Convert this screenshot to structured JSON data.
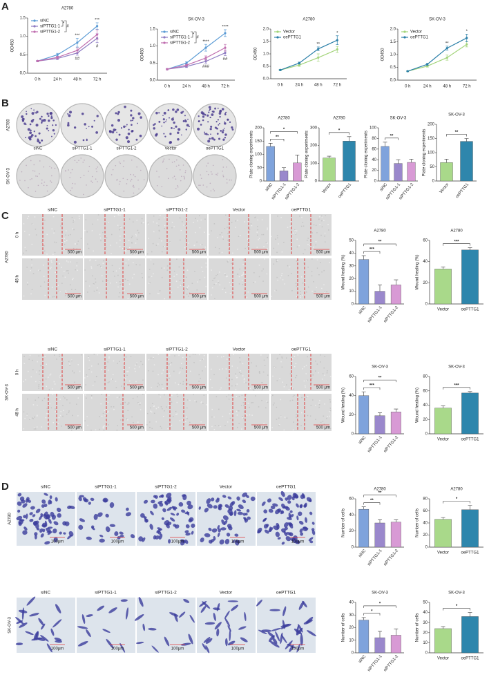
{
  "panel_letters": [
    "A",
    "B",
    "C",
    "D"
  ],
  "colony": {
    "columns": [
      "siNC",
      "siPTTG1-1",
      "siPTTG1-2",
      "Vector",
      "oePTTG1"
    ],
    "rows": [
      "A2780",
      "SK-OV-3"
    ]
  },
  "wound": [
    {
      "cell_line": "A2780",
      "columns": [
        "siNC",
        "siPTTG1-1",
        "siPTTG1-2",
        "Vector",
        "oePTTG1"
      ],
      "times": [
        "0 h",
        "48 h"
      ],
      "scale": "500 μm"
    },
    {
      "cell_line": "SK-OV-3",
      "columns": [
        "siNC",
        "siPTTG1-1",
        "siPTTG1-2",
        "Vector",
        "oePTTG1"
      ],
      "times": [
        "0 h",
        "48 h"
      ],
      "scale": "500 μm"
    }
  ],
  "transwell": [
    {
      "cell_line": "A2780",
      "columns": [
        "siNC",
        "siPTTG1-1",
        "siPTTG1-2",
        "Vector",
        "oePTTG1"
      ],
      "scale": "100μm"
    },
    {
      "cell_line": "SK-OV-3",
      "columns": [
        "siNC",
        "siPTTG1-1",
        "siPTTG1-2",
        "Vector",
        "oePTTG1"
      ],
      "scale": "100μm"
    }
  ],
  "chart_data": [
    {
      "type": "line",
      "title": "A2780",
      "categories": [
        "0 h",
        "24 h",
        "48 h",
        "72 h"
      ],
      "ylabel": "OD450",
      "ylim": [
        0,
        1.5
      ],
      "yticks": [
        {
          "value": 0,
          "label": "0.0"
        },
        0.5,
        {
          "value": 1,
          "label": "1.0"
        },
        1.5
      ],
      "series": [
        {
          "name": "siNC",
          "color": "#5b9bd5",
          "values": [
            0.33,
            0.5,
            0.83,
            1.28
          ],
          "errors": [
            0.02,
            0.04,
            0.12,
            0.09
          ]
        },
        {
          "name": "siPTTG1-1",
          "color": "#8e7cc3",
          "values": [
            0.33,
            0.4,
            0.55,
            0.95
          ],
          "errors": [
            0.02,
            0.03,
            0.06,
            0.12
          ]
        },
        {
          "name": "siPTTG1-2",
          "color": "#c06fb0",
          "values": [
            0.33,
            0.43,
            0.62,
            1.05
          ],
          "errors": [
            0.02,
            0.03,
            0.07,
            0.13
          ]
        }
      ],
      "annotations": [
        "*",
        "#",
        "***",
        "***",
        "##",
        "#"
      ]
    },
    {
      "type": "line",
      "title": "SK-OV-3",
      "categories": [
        "0 h",
        "24 h",
        "48 h",
        "72 h"
      ],
      "ylabel": "OD450",
      "ylim": [
        0,
        1.5
      ],
      "yticks": [
        {
          "value": 0,
          "label": "0.0"
        },
        0.5,
        {
          "value": 1,
          "label": "1.0"
        },
        1.5
      ],
      "series": [
        {
          "name": "siNC",
          "color": "#5b9bd5",
          "values": [
            0.32,
            0.5,
            0.95,
            1.38
          ],
          "errors": [
            0.02,
            0.04,
            0.1,
            0.1
          ]
        },
        {
          "name": "siPTTG1-1",
          "color": "#8e7cc3",
          "values": [
            0.32,
            0.4,
            0.55,
            0.8
          ],
          "errors": [
            0.02,
            0.03,
            0.05,
            0.08
          ]
        },
        {
          "name": "siPTTG1-2",
          "color": "#c06fb0",
          "values": [
            0.32,
            0.44,
            0.65,
            0.95
          ],
          "errors": [
            0.02,
            0.03,
            0.06,
            0.1
          ]
        }
      ],
      "annotations": [
        "*",
        "#",
        "****",
        "****",
        "###",
        "##"
      ]
    },
    {
      "type": "line",
      "title": "A2780",
      "categories": [
        "0 h",
        "24 h",
        "48 h",
        "72 h"
      ],
      "ylabel": "OD450",
      "ylim": [
        0,
        2
      ],
      "yticks": [
        {
          "value": 0,
          "label": "0.0"
        },
        0.5,
        {
          "value": 1,
          "label": "1.0"
        },
        1.5,
        {
          "value": 2,
          "label": "2.0"
        }
      ],
      "series": [
        {
          "name": "Vector",
          "color": "#a3d47a",
          "values": [
            0.35,
            0.55,
            0.85,
            1.18
          ],
          "errors": [
            0.02,
            0.05,
            0.15,
            0.12
          ]
        },
        {
          "name": "oePTTG1",
          "color": "#2a7fa8",
          "values": [
            0.35,
            0.63,
            1.2,
            1.55
          ],
          "errors": [
            0.02,
            0.04,
            0.08,
            0.18
          ]
        }
      ],
      "annotations": [
        "**",
        "*"
      ]
    },
    {
      "type": "line",
      "title": "SK-OV-3",
      "categories": [
        "0 h",
        "24 h",
        "48 h",
        "72 h"
      ],
      "ylabel": "OD450",
      "ylim": [
        0,
        2
      ],
      "yticks": [
        {
          "value": 0,
          "label": "0.0"
        },
        0.5,
        {
          "value": 1,
          "label": "1.0"
        },
        1.5,
        {
          "value": 2,
          "label": "2.0"
        }
      ],
      "series": [
        {
          "name": "Vector",
          "color": "#a3d47a",
          "values": [
            0.35,
            0.55,
            0.88,
            1.4
          ],
          "errors": [
            0.02,
            0.04,
            0.1,
            0.1
          ]
        },
        {
          "name": "oePTTG1",
          "color": "#2a7fa8",
          "values": [
            0.35,
            0.62,
            1.25,
            1.65
          ],
          "errors": [
            0.02,
            0.04,
            0.08,
            0.15
          ]
        }
      ],
      "annotations": [
        "**",
        "*"
      ]
    },
    {
      "type": "bar",
      "title": "A2780",
      "ylabel": "Plate cloning experiments",
      "categories": [
        "siNC",
        "siPTTG1-1",
        "siPTTG1-2"
      ],
      "values": [
        130,
        38,
        68
      ],
      "errors": [
        12,
        12,
        30
      ],
      "colors": [
        "#7fa3dc",
        "#9a88cc",
        "#d89ad5"
      ],
      "ylim": [
        0,
        200
      ],
      "yticks": [
        0,
        50,
        100,
        150,
        200
      ],
      "annotations": [
        "**",
        "*"
      ]
    },
    {
      "type": "bar",
      "title": "A2780",
      "ylabel": "Plate cloning experiments",
      "categories": [
        "Vector",
        "oePTTG1"
      ],
      "values": [
        130,
        225
      ],
      "errors": [
        10,
        25
      ],
      "colors": [
        "#a9d98a",
        "#2e86ac"
      ],
      "ylim": [
        0,
        300
      ],
      "yticks": [
        0,
        100,
        200,
        300
      ],
      "annotations": [
        "*"
      ]
    },
    {
      "type": "bar",
      "title": "SK-OV-3",
      "ylabel": "Plate cloning experiments",
      "categories": [
        "siNC",
        "siPTTG1-1",
        "siPTTG1-2"
      ],
      "values": [
        65,
        33,
        35
      ],
      "errors": [
        8,
        7,
        6
      ],
      "colors": [
        "#7fa3dc",
        "#9a88cc",
        "#d89ad5"
      ],
      "ylim": [
        0,
        100
      ],
      "yticks": [
        0,
        20,
        40,
        60,
        80,
        100
      ],
      "annotations": [
        "**"
      ]
    },
    {
      "type": "bar",
      "title": "SK-OV-3",
      "ylabel": "Plate cloning experiments",
      "categories": [
        "Vector",
        "oePTTG1"
      ],
      "values": [
        65,
        140
      ],
      "errors": [
        12,
        10
      ],
      "colors": [
        "#a9d98a",
        "#2e86ac"
      ],
      "ylim": [
        0,
        200
      ],
      "yticks": [
        0,
        50,
        100,
        150,
        200
      ],
      "annotations": [
        "**"
      ]
    },
    {
      "type": "bar",
      "title": "A2780",
      "ylabel": "Wound healing (%)",
      "categories": [
        "siNC",
        "siPTTG1-1",
        "siPTTG1-2"
      ],
      "values": [
        35,
        10,
        15
      ],
      "errors": [
        3,
        5,
        4
      ],
      "colors": [
        "#7fa3dc",
        "#9a88cc",
        "#d89ad5"
      ],
      "ylim": [
        0,
        50
      ],
      "yticks": [
        0,
        10,
        20,
        30,
        40,
        50
      ],
      "annotations": [
        "***",
        "**"
      ]
    },
    {
      "type": "bar",
      "title": "A2780",
      "ylabel": "Wound healing (%)",
      "categories": [
        "Vector",
        "oePTTG1"
      ],
      "values": [
        33,
        51
      ],
      "errors": [
        2,
        2
      ],
      "colors": [
        "#a9d98a",
        "#2e86ac"
      ],
      "ylim": [
        0,
        60
      ],
      "yticks": [
        0,
        20,
        40,
        60
      ],
      "annotations": [
        "***"
      ]
    },
    {
      "type": "bar",
      "title": "SK-OV-3",
      "ylabel": "Wound healing (%)",
      "categories": [
        "siNC",
        "siPTTG1-1",
        "siPTTG1-2"
      ],
      "values": [
        40,
        19,
        23
      ],
      "errors": [
        4,
        3,
        3
      ],
      "colors": [
        "#7fa3dc",
        "#9a88cc",
        "#d89ad5"
      ],
      "ylim": [
        0,
        60
      ],
      "yticks": [
        0,
        20,
        40,
        60
      ],
      "annotations": [
        "***",
        "**"
      ]
    },
    {
      "type": "bar",
      "title": "SK-OV-3",
      "ylabel": "Wound healing (%)",
      "categories": [
        "Vector",
        "oePTTG1"
      ],
      "values": [
        36,
        57
      ],
      "errors": [
        3,
        2
      ],
      "colors": [
        "#a9d98a",
        "#2e86ac"
      ],
      "ylim": [
        0,
        80
      ],
      "yticks": [
        0,
        20,
        40,
        60,
        80
      ],
      "annotations": [
        "***"
      ]
    },
    {
      "type": "bar",
      "title": "A2780",
      "ylabel": "Number of cells",
      "categories": [
        "siNC",
        "siPTTG1-1",
        "siPTTG1-2"
      ],
      "values": [
        47,
        30,
        31
      ],
      "errors": [
        3,
        4,
        3
      ],
      "colors": [
        "#7fa3dc",
        "#9a88cc",
        "#d89ad5"
      ],
      "ylim": [
        0,
        60
      ],
      "yticks": [
        0,
        20,
        40,
        60
      ],
      "annotations": [
        "**",
        "**"
      ]
    },
    {
      "type": "bar",
      "title": "A2780",
      "ylabel": "Number of cells",
      "categories": [
        "Vector",
        "oePTTG1"
      ],
      "values": [
        46,
        62
      ],
      "errors": [
        3,
        7
      ],
      "colors": [
        "#a9d98a",
        "#2e86ac"
      ],
      "ylim": [
        0,
        80
      ],
      "yticks": [
        0,
        20,
        40,
        60,
        80
      ],
      "annotations": [
        "*"
      ]
    },
    {
      "type": "bar",
      "title": "SK-OV-3",
      "ylabel": "Number of cells",
      "categories": [
        "siNC",
        "siPTTG1-1",
        "siPTTG1-2"
      ],
      "values": [
        26,
        12,
        14
      ],
      "errors": [
        2,
        5,
        5
      ],
      "colors": [
        "#7fa3dc",
        "#9a88cc",
        "#d89ad5"
      ],
      "ylim": [
        0,
        40
      ],
      "yticks": [
        0,
        10,
        20,
        30,
        40
      ],
      "annotations": [
        "*",
        "*"
      ]
    },
    {
      "type": "bar",
      "title": "SK-OV-3",
      "ylabel": "Number of cells",
      "categories": [
        "Vector",
        "oePTTG1"
      ],
      "values": [
        24,
        36
      ],
      "errors": [
        2,
        4
      ],
      "colors": [
        "#a9d98a",
        "#2e86ac"
      ],
      "ylim": [
        0,
        50
      ],
      "yticks": [
        0,
        10,
        20,
        30,
        40,
        50
      ],
      "annotations": [
        "*"
      ]
    }
  ]
}
